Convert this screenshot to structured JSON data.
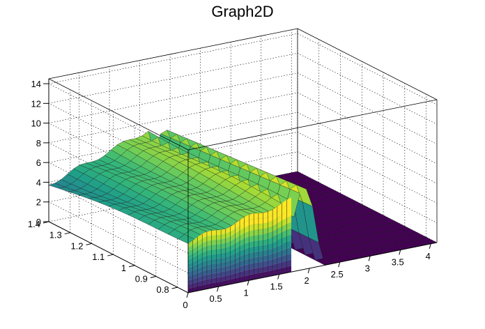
{
  "title": "Graph2D",
  "chart_data": {
    "type": "surface",
    "title": "Graph2D",
    "xlabel": "",
    "ylabel": "",
    "zlabel": "",
    "xlim": [
      0,
      4.1
    ],
    "ylim": [
      0.75,
      1.4
    ],
    "zlim": [
      0,
      14.5
    ],
    "x_ticks": [
      "0",
      "0.5",
      "1",
      "1.5",
      "2",
      "2.5",
      "3",
      "3.5",
      "4"
    ],
    "y_ticks": [
      "0.8",
      "0.9",
      "1",
      "1.1",
      "1.2",
      "1.3",
      "1.4"
    ],
    "z_ticks": [
      "0",
      "2",
      "4",
      "6",
      "8",
      "10",
      "12",
      "14"
    ],
    "grid": true,
    "palette": "viridis",
    "description_values": {
      "plateau_x_range": [
        0,
        1.7
      ],
      "plateau_y_range": [
        0.75,
        1.4
      ],
      "plateau_z_at_front_left": 5.2,
      "plateau_z_at_front_right": 7.3,
      "plateau_z_at_back_left": 3.8,
      "plateau_z_at_back_right": 7.4,
      "ridge_x": 2.0,
      "ridge_z_max": 8.3,
      "floor_z": 0
    }
  }
}
